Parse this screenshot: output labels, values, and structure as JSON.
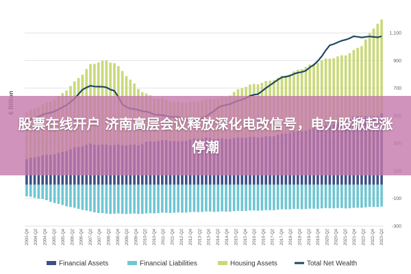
{
  "banner": {
    "headline": "股票在线开户 济南高层会议释放深化电改信号，电力股掀起涨停潮"
  },
  "chart_data": {
    "type": "bar",
    "ylabel": "€ Billion",
    "ylim": [
      -300,
      1200
    ],
    "yticks": [
      -300,
      -100,
      100,
      300,
      500,
      700,
      900,
      1100
    ],
    "xtick_labels": [
      "2003-Q4",
      "2004-Q2",
      "2004-Q4",
      "2005-Q2",
      "2005-Q4",
      "2006-Q2",
      "2006-Q4",
      "2007-Q2",
      "2007-Q4",
      "2008-Q2",
      "2008-Q4",
      "2009-Q2",
      "2009-Q4",
      "2010-Q2",
      "2010-Q4",
      "2011-Q2",
      "2011-Q4",
      "2012-Q2",
      "2012-Q4",
      "2013-Q2",
      "2013-Q4",
      "2014-Q2",
      "2014-Q4",
      "2015-Q2",
      "2015-Q4",
      "2016-Q2",
      "2016-Q4",
      "2017-Q2",
      "2017-Q4",
      "2018-Q2",
      "2018-Q4",
      "2019-Q2",
      "2019-Q4",
      "2020-Q2",
      "2020-Q4",
      "2021-Q2",
      "2021-Q4",
      "2022-Q2",
      "2022-Q4",
      "2023-Q2"
    ],
    "colors": {
      "financial_assets": "#3e4f86",
      "financial_liabilities": "#6fc6d2",
      "housing_assets": "#c9d97a",
      "net_wealth": "#1e4663"
    },
    "legend": [
      {
        "label": "Financial Assets",
        "color": "#3e4f86",
        "kind": "bar"
      },
      {
        "label": "Financial Liabilities",
        "color": "#6fc6d2",
        "kind": "bar"
      },
      {
        "label": "Housing Assets",
        "color": "#c9d97a",
        "kind": "bar"
      },
      {
        "label": "Total Net Wealth",
        "color": "#1e4663",
        "kind": "line"
      }
    ],
    "legend_position": "bottom",
    "series": [
      {
        "name": "Financial Assets",
        "anchors": [
          [
            0,
            185
          ],
          [
            4,
            210
          ],
          [
            8,
            230
          ],
          [
            12,
            265
          ],
          [
            16,
            295
          ],
          [
            20,
            290
          ],
          [
            24,
            285
          ],
          [
            28,
            290
          ],
          [
            30,
            310
          ],
          [
            35,
            320
          ],
          [
            38,
            315
          ],
          [
            42,
            330
          ],
          [
            45,
            335
          ],
          [
            50,
            335
          ],
          [
            54,
            340
          ],
          [
            58,
            345
          ],
          [
            62,
            355
          ],
          [
            66,
            375
          ],
          [
            70,
            395
          ],
          [
            74,
            420
          ],
          [
            78,
            445
          ],
          [
            80,
            470
          ],
          [
            82,
            495
          ],
          [
            84,
            500
          ],
          [
            86,
            490
          ],
          [
            88,
            500
          ],
          [
            89,
            515
          ]
        ]
      },
      {
        "name": "Financial Liabilities",
        "anchors": [
          [
            0,
            -85
          ],
          [
            4,
            -105
          ],
          [
            8,
            -140
          ],
          [
            12,
            -170
          ],
          [
            16,
            -195
          ],
          [
            20,
            -210
          ],
          [
            24,
            -212
          ],
          [
            28,
            -210
          ],
          [
            35,
            -205
          ],
          [
            40,
            -200
          ],
          [
            45,
            -197
          ],
          [
            50,
            -194
          ],
          [
            55,
            -190
          ],
          [
            60,
            -185
          ],
          [
            65,
            -180
          ],
          [
            70,
            -175
          ],
          [
            75,
            -172
          ],
          [
            80,
            -170
          ],
          [
            85,
            -165
          ],
          [
            89,
            -160
          ]
        ]
      },
      {
        "name": "Housing Assets",
        "anchors": [
          [
            0,
            525
          ],
          [
            4,
            575
          ],
          [
            8,
            640
          ],
          [
            12,
            740
          ],
          [
            14,
            800
          ],
          [
            16,
            870
          ],
          [
            18,
            895
          ],
          [
            20,
            900
          ],
          [
            22,
            880
          ],
          [
            24,
            820
          ],
          [
            26,
            760
          ],
          [
            28,
            700
          ],
          [
            30,
            660
          ],
          [
            32,
            630
          ],
          [
            35,
            610
          ],
          [
            38,
            600
          ],
          [
            42,
            600
          ],
          [
            45,
            610
          ],
          [
            50,
            640
          ],
          [
            54,
            700
          ],
          [
            58,
            735
          ],
          [
            62,
            765
          ],
          [
            66,
            800
          ],
          [
            70,
            860
          ],
          [
            74,
            900
          ],
          [
            78,
            925
          ],
          [
            80,
            945
          ],
          [
            82,
            975
          ],
          [
            84,
            1010
          ],
          [
            86,
            1090
          ],
          [
            88,
            1170
          ],
          [
            89,
            1195
          ]
        ]
      },
      {
        "name": "Total Net Wealth",
        "anchors": [
          [
            0,
            460
          ],
          [
            4,
            505
          ],
          [
            8,
            545
          ],
          [
            10,
            580
          ],
          [
            12,
            620
          ],
          [
            14,
            690
          ],
          [
            16,
            715
          ],
          [
            18,
            715
          ],
          [
            20,
            705
          ],
          [
            22,
            680
          ],
          [
            24,
            580
          ],
          [
            26,
            550
          ],
          [
            28,
            545
          ],
          [
            30,
            530
          ],
          [
            32,
            510
          ],
          [
            35,
            495
          ],
          [
            38,
            490
          ],
          [
            40,
            475
          ],
          [
            42,
            470
          ],
          [
            45,
            490
          ],
          [
            48,
            560
          ],
          [
            50,
            580
          ],
          [
            53,
            605
          ],
          [
            56,
            640
          ],
          [
            58,
            660
          ],
          [
            60,
            700
          ],
          [
            62,
            745
          ],
          [
            64,
            775
          ],
          [
            66,
            790
          ],
          [
            68,
            810
          ],
          [
            70,
            830
          ],
          [
            72,
            870
          ],
          [
            74,
            930
          ],
          [
            76,
            1010
          ],
          [
            78,
            1030
          ],
          [
            80,
            1055
          ],
          [
            82,
            1075
          ],
          [
            84,
            1070
          ],
          [
            86,
            1070
          ],
          [
            88,
            1070
          ],
          [
            89,
            1075
          ]
        ]
      }
    ],
    "n_bars": 90
  }
}
